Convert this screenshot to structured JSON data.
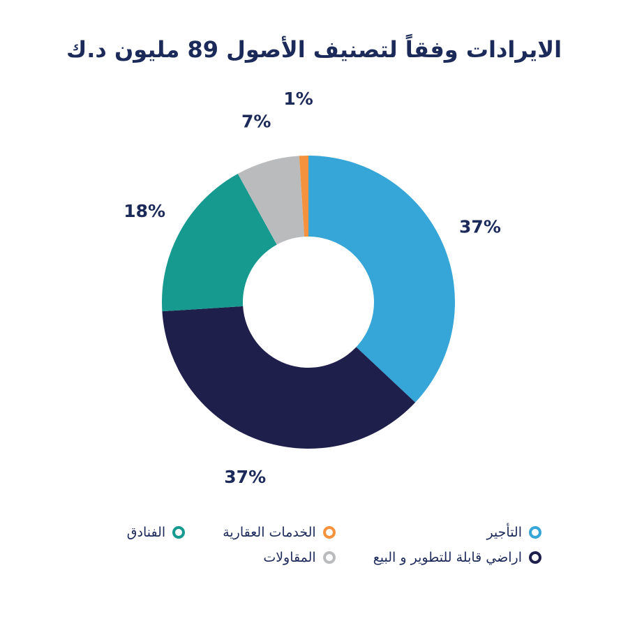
{
  "chart_data": {
    "type": "pie",
    "title": "الايرادات وفقاً لتصنيف الأصول 89 مليون د.ك",
    "donut": true,
    "categories": [
      "التأجير",
      "اراضي قابلة للتطوير و البيع",
      "الفنادق",
      "المقاولات",
      "الخدمات العقارية"
    ],
    "values": [
      37,
      37,
      18,
      7,
      1
    ],
    "labels": [
      "37%",
      "37%",
      "18%",
      "7%",
      "1%"
    ],
    "colors": [
      "#36a5d7",
      "#1f1f4c",
      "#16998f",
      "#babbbd",
      "#f4923d"
    ],
    "legend_position": "bottom-right"
  },
  "legend": {
    "row1": [
      {
        "label": "التأجير",
        "color": "#36a5d7"
      },
      {
        "label": "الخدمات العقارية",
        "color": "#f4923d"
      },
      {
        "label": "الفنادق",
        "color": "#16998f"
      }
    ],
    "row2": [
      {
        "label": "اراضي قابلة للتطوير و البيع",
        "color": "#1f1f4c"
      },
      {
        "label": "المقاولات",
        "color": "#babbbd"
      }
    ]
  }
}
